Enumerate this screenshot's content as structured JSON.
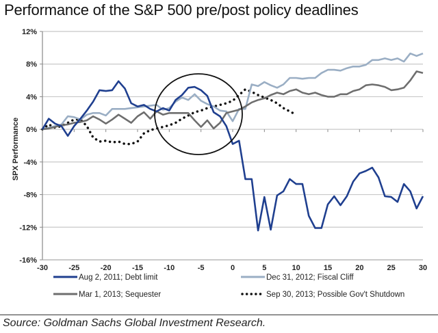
{
  "chart_data": {
    "type": "line",
    "title": "Performance of the S&P 500 pre/post policy deadlines",
    "xlabel": "",
    "ylabel": "SPX Performance",
    "xlim": [
      -30,
      30
    ],
    "ylim": [
      -16,
      12
    ],
    "x_ticks": [
      -30,
      -25,
      -20,
      -15,
      -10,
      -5,
      0,
      5,
      10,
      15,
      20,
      25,
      30
    ],
    "x_tick_labels": [
      "-30",
      "-25",
      "-20",
      "-15",
      "-10",
      "-5",
      "0",
      "5",
      "10",
      "15",
      "20",
      "25",
      "30"
    ],
    "y_ticks": [
      12,
      8,
      4,
      0,
      -4,
      -8,
      -12,
      -16
    ],
    "y_tick_labels": [
      "12%",
      "8%",
      "4%",
      "0%",
      "-4%",
      "-8%",
      "-12%",
      "-16%"
    ],
    "grid": "horizontal",
    "legend_position": "bottom",
    "annotation": "circle highlighting days -10 to 0",
    "x": [
      -30,
      -29,
      -28,
      -27,
      -26,
      -25,
      -24,
      -23,
      -22,
      -21,
      -20,
      -19,
      -18,
      -17,
      -16,
      -15,
      -14,
      -13,
      -12,
      -11,
      -10,
      -9,
      -8,
      -7,
      -6,
      -5,
      -4,
      -3,
      -2,
      -1,
      0,
      1,
      2,
      3,
      4,
      5,
      6,
      7,
      8,
      9,
      10,
      11,
      12,
      13,
      14,
      15,
      16,
      17,
      18,
      19,
      20,
      21,
      22,
      23,
      24,
      25,
      26,
      27,
      28,
      29,
      30
    ],
    "series": [
      {
        "name": "Aug 2, 2011; Debt limit",
        "color": "#1f3f8f",
        "style": "solid",
        "values": [
          0,
          1.3,
          0.7,
          0.4,
          -0.8,
          0.4,
          1.3,
          2.3,
          3.4,
          4.8,
          4.7,
          4.8,
          5.9,
          5.0,
          3.2,
          2.8,
          3.0,
          2.5,
          2.2,
          2.6,
          2.3,
          3.6,
          4.2,
          5.1,
          5.2,
          4.8,
          4.1,
          2.1,
          1.6,
          0.4,
          -1.8,
          -1.4,
          -6.1,
          -6.1,
          -12.4,
          -8.3,
          -12.3,
          -8.1,
          -7.6,
          -6.1,
          -6.7,
          -6.7,
          -10.6,
          -12.1,
          -12.1,
          -9.2,
          -8.2,
          -9.3,
          -8.2,
          -6.4,
          -5.4,
          -5.1,
          -4.7,
          -5.9,
          -8.2,
          -8.3,
          -8.9,
          -6.7,
          -7.6,
          -9.7,
          -8.2
        ]
      },
      {
        "name": "Dec 31, 2012; Fiscal Cliff",
        "color": "#9aaec4",
        "style": "solid",
        "values": [
          0,
          0.2,
          0.4,
          0.6,
          1.6,
          1.5,
          1.2,
          1.8,
          2.0,
          2.0,
          1.7,
          2.5,
          2.5,
          2.5,
          2.6,
          2.7,
          2.8,
          2.9,
          3.0,
          2.4,
          2.6,
          3.4,
          3.9,
          3.6,
          4.3,
          3.5,
          3.1,
          2.8,
          2.3,
          2.2,
          1.0,
          2.5,
          2.5,
          5.5,
          5.3,
          5.8,
          5.4,
          5.1,
          5.5,
          6.3,
          6.3,
          6.2,
          6.3,
          6.3,
          6.9,
          7.3,
          7.3,
          7.2,
          7.5,
          7.7,
          7.7,
          7.9,
          8.5,
          8.5,
          8.7,
          8.5,
          8.7,
          8.3,
          9.3,
          9.0,
          9.3
        ]
      },
      {
        "name": "Mar 1, 2013; Sequester",
        "color": "#6e6e6e",
        "style": "solid",
        "values": [
          0,
          0.1,
          0.3,
          0.5,
          0.6,
          0.8,
          0.9,
          1.1,
          1.6,
          1.2,
          0.7,
          1.2,
          1.8,
          1.3,
          0.8,
          1.6,
          2.1,
          1.3,
          2.2,
          1.8,
          2.0,
          2.0,
          2.0,
          2.0,
          1.1,
          0.3,
          1.1,
          0.1,
          0.8,
          2.0,
          2.2,
          2.4,
          2.8,
          3.3,
          3.6,
          3.8,
          4.2,
          4.5,
          4.3,
          4.7,
          4.9,
          4.5,
          4.3,
          4.5,
          4.2,
          4.0,
          4.0,
          4.3,
          4.3,
          4.7,
          4.9,
          5.4,
          5.5,
          5.4,
          5.2,
          4.8,
          4.9,
          5.1,
          6.0,
          7.1,
          6.9
        ]
      },
      {
        "name": "Sep 30, 2013; Possible Gov't Shutdown",
        "color": "#111111",
        "style": "dotted",
        "values": [
          0,
          0.6,
          0.2,
          0.4,
          0.8,
          1.2,
          1.2,
          0.4,
          -1.0,
          -1.5,
          -1.4,
          -1.6,
          -1.5,
          -1.8,
          -1.8,
          -1.5,
          -0.5,
          -0.1,
          0.1,
          0.3,
          0.5,
          0.8,
          1.3,
          1.7,
          2.1,
          2.3,
          2.6,
          2.8,
          3.0,
          3.2,
          3.5,
          4.2,
          4.9,
          4.6,
          4.2,
          3.9,
          3.6,
          3.2,
          2.6,
          2.2,
          1.8,
          null,
          null,
          null,
          null,
          null,
          null,
          null,
          null,
          null,
          null,
          null,
          null,
          null,
          null,
          null,
          null,
          null,
          null,
          null,
          null
        ]
      }
    ]
  },
  "source": "Source: Goldman Sachs Global Investment Research."
}
